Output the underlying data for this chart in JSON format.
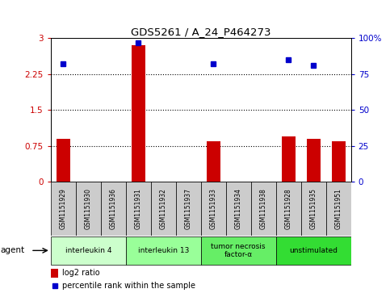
{
  "title": "GDS5261 / A_24_P464273",
  "samples": [
    "GSM1151929",
    "GSM1151930",
    "GSM1151936",
    "GSM1151931",
    "GSM1151932",
    "GSM1151937",
    "GSM1151933",
    "GSM1151934",
    "GSM1151938",
    "GSM1151928",
    "GSM1151935",
    "GSM1151951"
  ],
  "log2_ratio": [
    0.9,
    0.0,
    0.0,
    2.85,
    0.0,
    0.0,
    0.85,
    0.0,
    0.0,
    0.95,
    0.9,
    0.85
  ],
  "percentile": [
    82,
    0,
    0,
    97,
    0,
    0,
    82,
    0,
    0,
    85,
    81,
    0
  ],
  "percentile_show": [
    true,
    false,
    false,
    true,
    false,
    false,
    true,
    false,
    false,
    true,
    true,
    false
  ],
  "bar_color": "#cc0000",
  "dot_color": "#0000cc",
  "ylim_left": [
    0,
    3
  ],
  "ylim_right": [
    0,
    100
  ],
  "yticks_left": [
    0,
    0.75,
    1.5,
    2.25,
    3
  ],
  "yticks_right": [
    0,
    25,
    50,
    75,
    100
  ],
  "ytick_labels_left": [
    "0",
    "0.75",
    "1.5",
    "2.25",
    "3"
  ],
  "ytick_labels_right": [
    "0",
    "25",
    "50",
    "75",
    "100%"
  ],
  "hlines": [
    0.75,
    1.5,
    2.25
  ],
  "agents": [
    {
      "label": "interleukin 4",
      "start": 0,
      "end": 3,
      "color": "#ccffcc"
    },
    {
      "label": "interleukin 13",
      "start": 3,
      "end": 6,
      "color": "#99ff99"
    },
    {
      "label": "tumor necrosis\nfactor-α",
      "start": 6,
      "end": 9,
      "color": "#66ee66"
    },
    {
      "label": "unstimulated",
      "start": 9,
      "end": 12,
      "color": "#33dd33"
    }
  ],
  "legend_items": [
    {
      "color": "#cc0000",
      "label": "log2 ratio"
    },
    {
      "color": "#0000cc",
      "label": "percentile rank within the sample"
    }
  ],
  "bg_color": "#ffffff",
  "sample_box_color": "#cccccc"
}
